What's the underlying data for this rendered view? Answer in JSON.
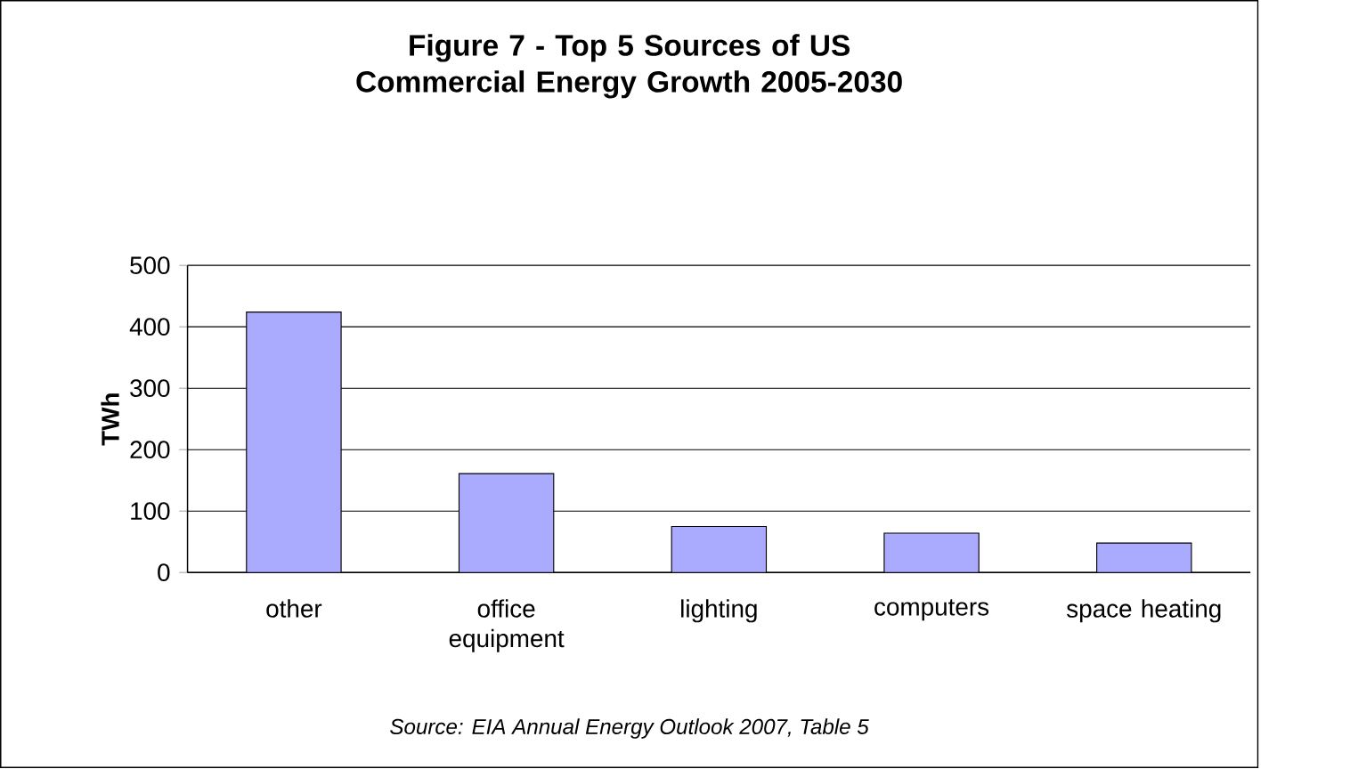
{
  "chart_data": {
    "type": "bar",
    "title": "Figure 7 - Top 5 Sources of US Commercial Energy Growth 2005-2030",
    "ylabel": "TWh",
    "categories": [
      "other",
      "office equipment",
      "lighting",
      "computers",
      "space heating"
    ],
    "values": [
      424,
      161,
      75,
      64,
      48
    ],
    "color": "#aaaaff",
    "ylim": [
      0,
      500
    ],
    "yticks": [
      0,
      100,
      200,
      300,
      400,
      500
    ],
    "grid": "y",
    "annotations": [
      "*Source: EIA Annual Energy Outlook 2007, Table 5*"
    ]
  }
}
